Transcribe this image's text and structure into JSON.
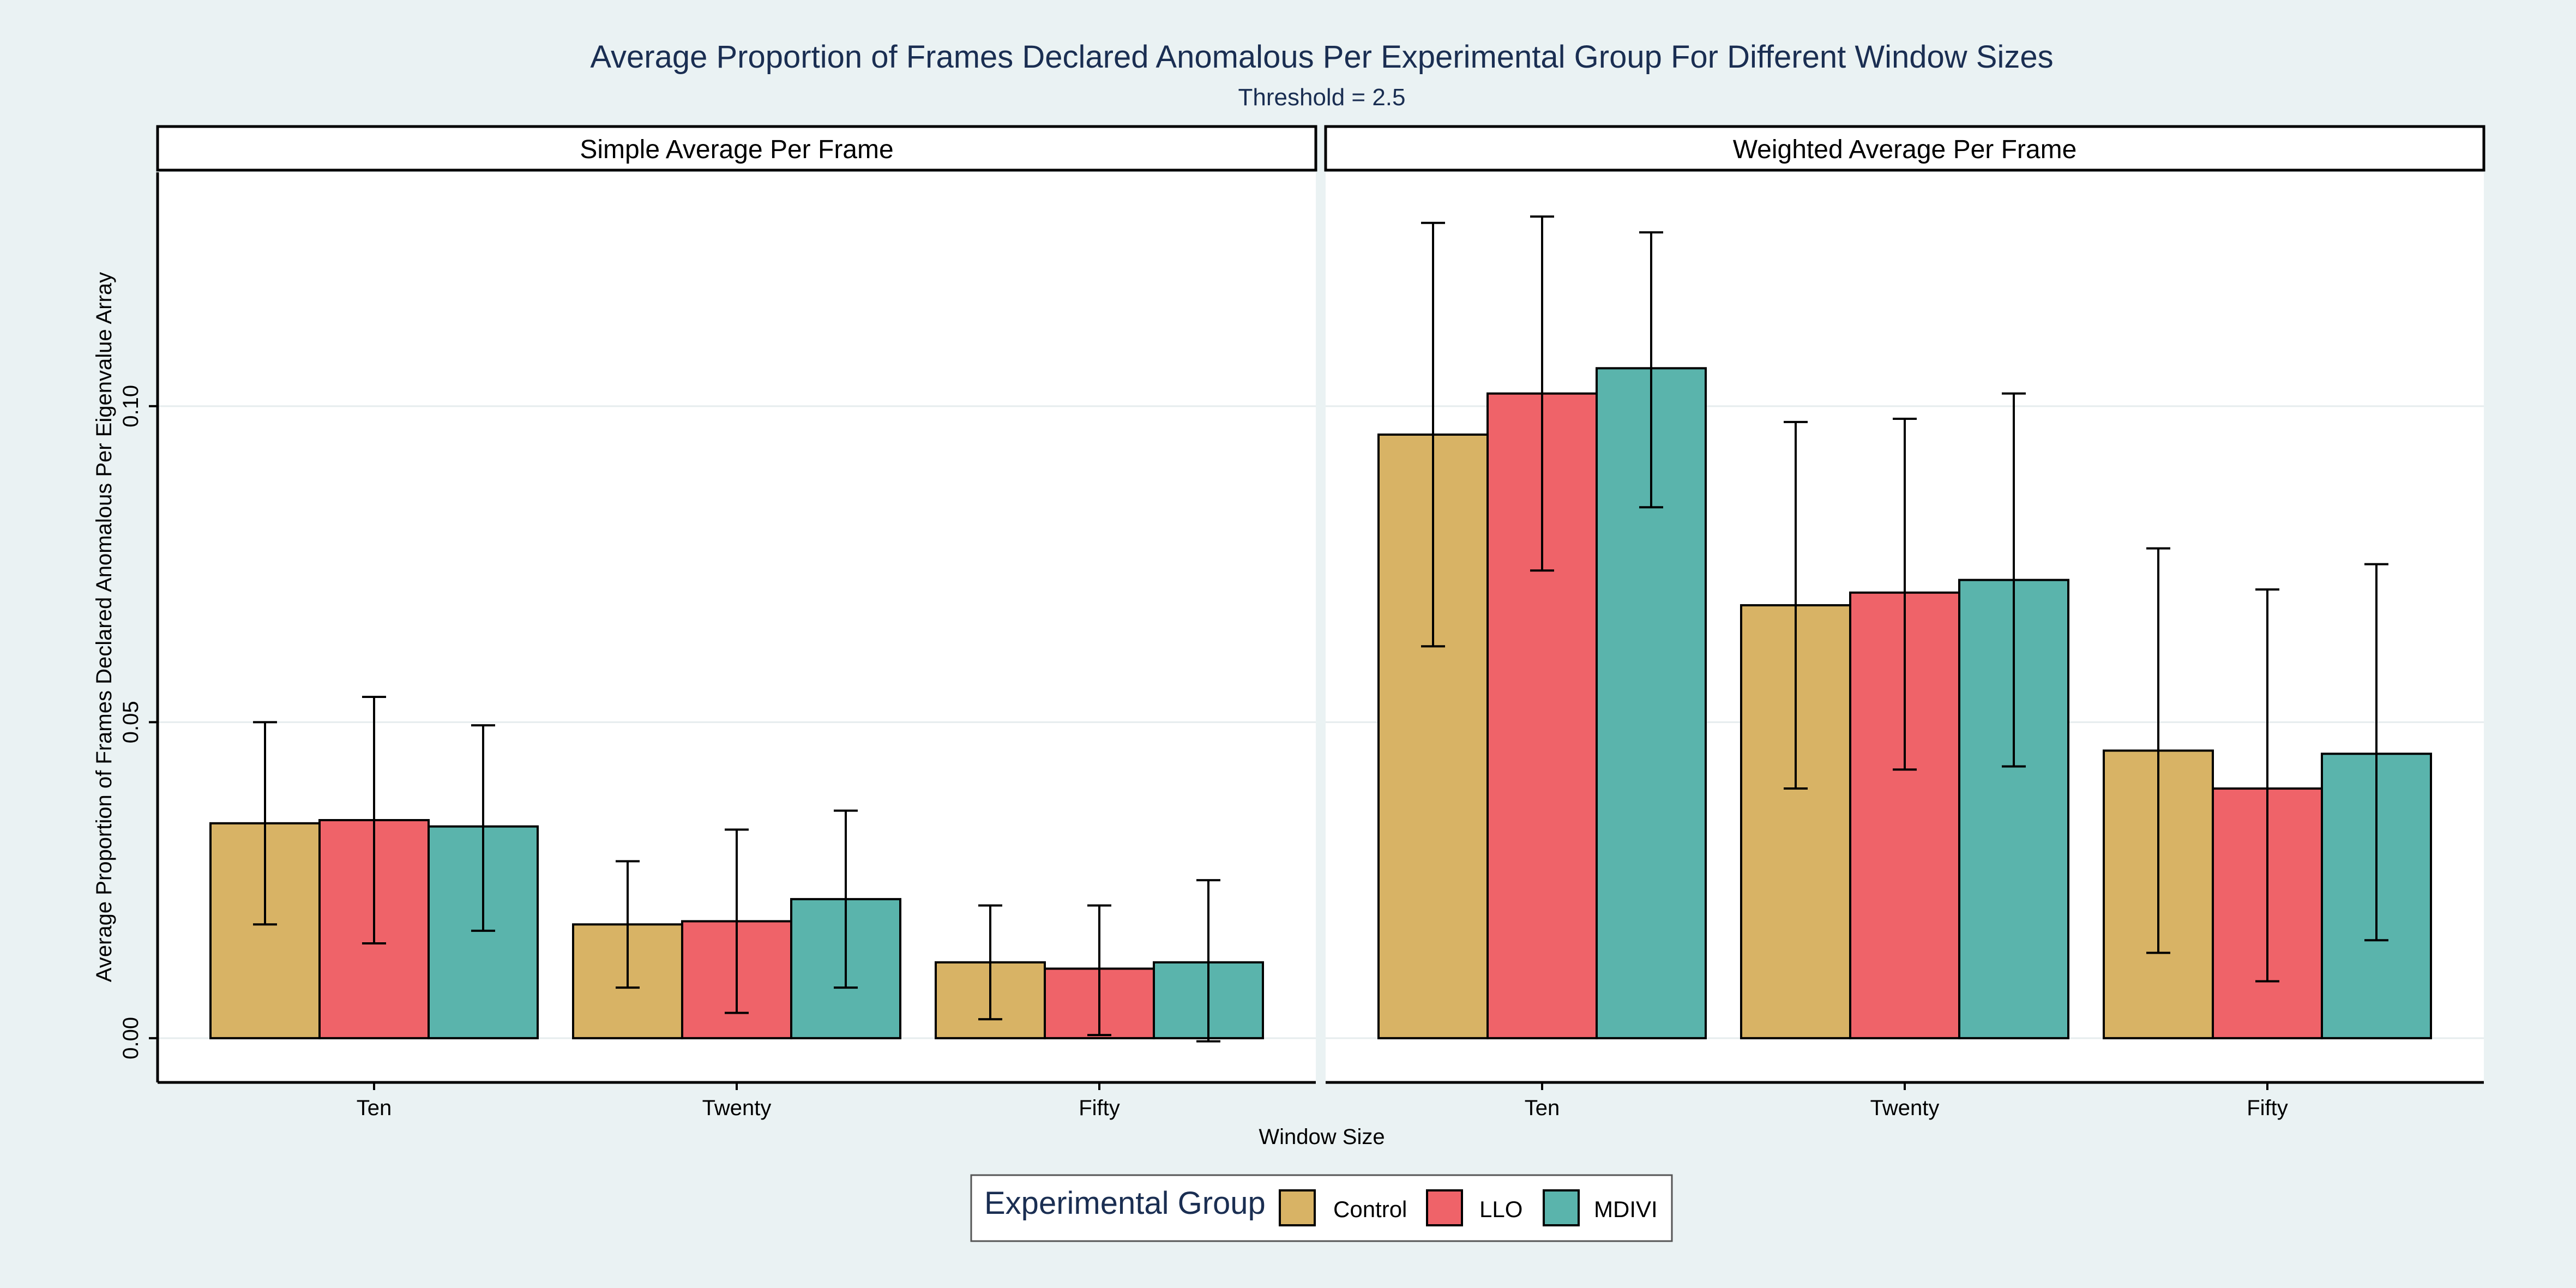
{
  "chart_data": {
    "type": "bar",
    "title": "Average Proportion of Frames Declared Anomalous Per Experimental Group For Different Window Sizes",
    "subtitle": "Threshold = 2.5",
    "xlabel": "Window Size",
    "ylabel": "Average Proportion of Frames Declared Anomalous Per Eigenvalue Array",
    "ylim": [
      -0.007,
      0.137
    ],
    "yticks": [
      0.0,
      0.05,
      0.1
    ],
    "ytick_labels": [
      "0.00",
      "0.05",
      "0.10"
    ],
    "grid": true,
    "categories": [
      "Ten",
      "Twenty",
      "Fifty"
    ],
    "legend": {
      "title": "Experimental Group",
      "position": "bottom",
      "entries": [
        "Control",
        "LLO",
        "MDIVI"
      ]
    },
    "colors": {
      "Control": "#d8b365",
      "LLO": "#ef6369",
      "MDIVI": "#5ab4ac"
    },
    "panels": [
      {
        "name": "Simple Average Per Frame",
        "series": [
          {
            "name": "Control",
            "values": [
              0.034,
              0.018,
              0.012
            ],
            "lower": [
              0.018,
              0.008,
              0.003
            ],
            "upper": [
              0.05,
              0.028,
              0.021
            ]
          },
          {
            "name": "LLO",
            "values": [
              0.0345,
              0.0185,
              0.011
            ],
            "lower": [
              0.015,
              0.004,
              0.0005
            ],
            "upper": [
              0.054,
              0.033,
              0.021
            ]
          },
          {
            "name": "MDIVI",
            "values": [
              0.0335,
              0.022,
              0.012
            ],
            "lower": [
              0.017,
              0.008,
              -0.0005
            ],
            "upper": [
              0.0495,
              0.036,
              0.025
            ]
          }
        ]
      },
      {
        "name": "Weighted Average Per Frame",
        "series": [
          {
            "name": "Control",
            "values": [
              0.0955,
              0.0685,
              0.0455
            ],
            "lower": [
              0.062,
              0.0395,
              0.0135
            ],
            "upper": [
              0.129,
              0.0975,
              0.0775
            ]
          },
          {
            "name": "LLO",
            "values": [
              0.102,
              0.0705,
              0.0395
            ],
            "lower": [
              0.074,
              0.0425,
              0.009
            ],
            "upper": [
              0.13,
              0.098,
              0.071
            ]
          },
          {
            "name": "MDIVI",
            "values": [
              0.106,
              0.0725,
              0.045
            ],
            "lower": [
              0.084,
              0.043,
              0.0155
            ],
            "upper": [
              0.1275,
              0.102,
              0.075
            ]
          }
        ]
      }
    ]
  }
}
